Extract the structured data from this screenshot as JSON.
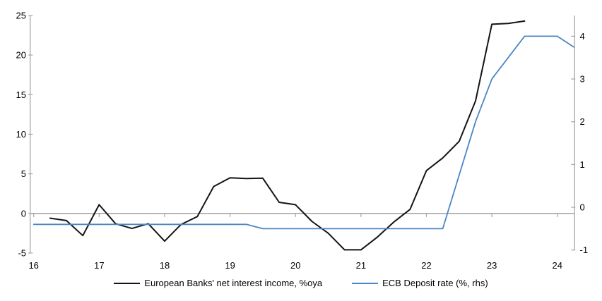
{
  "colors": {
    "background": "#ffffff",
    "axis_gray": "#a6a6a6",
    "nii_black": "#141414",
    "ecb_blue": "#4a86c6"
  },
  "chart_data": {
    "type": "line",
    "title": "",
    "x_axis": {
      "tick_labels": [
        "16",
        "17",
        "18",
        "19",
        "20",
        "21",
        "22",
        "23",
        "24"
      ],
      "tick_values": [
        16,
        17,
        18,
        19,
        20,
        21,
        22,
        23,
        24
      ],
      "range": [
        16,
        24.27
      ],
      "grid": "zero-line-only"
    },
    "y_left_axis": {
      "ticks": [
        -5,
        0,
        5,
        10,
        15,
        20,
        25
      ],
      "range": [
        -5,
        25
      ],
      "side": "left"
    },
    "y_right_axis": {
      "ticks": [
        -1,
        0,
        1,
        2,
        3,
        4
      ],
      "range": [
        -1,
        4.5
      ],
      "side": "right"
    },
    "legend_position": "bottom-center",
    "series": [
      {
        "name": "European Banks' net interest income, %oya",
        "axis": "left",
        "color": "#141414",
        "stroke_width": 2,
        "x": [
          16.25,
          16.5,
          16.75,
          17.0,
          17.25,
          17.5,
          17.75,
          18.0,
          18.25,
          18.5,
          18.75,
          19.0,
          19.25,
          19.5,
          19.75,
          20.0,
          20.25,
          20.5,
          20.75,
          21.0,
          21.25,
          21.5,
          21.75,
          22.0,
          22.25,
          22.5,
          22.75,
          23.0,
          23.25,
          23.5
        ],
        "values": [
          -0.6,
          -0.9,
          -2.8,
          1.1,
          -1.3,
          -1.9,
          -1.3,
          -3.5,
          -1.4,
          -0.4,
          3.4,
          4.5,
          4.4,
          4.45,
          1.4,
          1.1,
          -1.0,
          -2.5,
          -4.6,
          -4.6,
          -3.0,
          -1.1,
          0.5,
          5.4,
          7.0,
          9.1,
          14.2,
          23.9,
          24.0,
          24.3
        ]
      },
      {
        "name": "ECB Deposit rate (%, rhs)",
        "axis": "right",
        "color": "#4a86c6",
        "stroke_width": 1.8,
        "x": [
          16.0,
          16.25,
          16.5,
          16.75,
          17.0,
          17.25,
          17.5,
          17.75,
          18.0,
          18.25,
          18.5,
          18.75,
          19.0,
          19.25,
          19.5,
          19.75,
          20.0,
          20.25,
          20.5,
          20.75,
          21.0,
          21.25,
          21.5,
          21.75,
          22.0,
          22.25,
          22.5,
          22.75,
          23.0,
          23.25,
          23.5,
          23.75,
          24.0,
          24.25
        ],
        "values": [
          -0.4,
          -0.4,
          -0.4,
          -0.4,
          -0.4,
          -0.4,
          -0.4,
          -0.4,
          -0.4,
          -0.4,
          -0.4,
          -0.4,
          -0.4,
          -0.4,
          -0.5,
          -0.5,
          -0.5,
          -0.5,
          -0.5,
          -0.5,
          -0.5,
          -0.5,
          -0.5,
          -0.5,
          -0.5,
          -0.5,
          0.75,
          2.0,
          3.0,
          3.5,
          4.0,
          4.0,
          4.0,
          3.75
        ]
      }
    ]
  }
}
